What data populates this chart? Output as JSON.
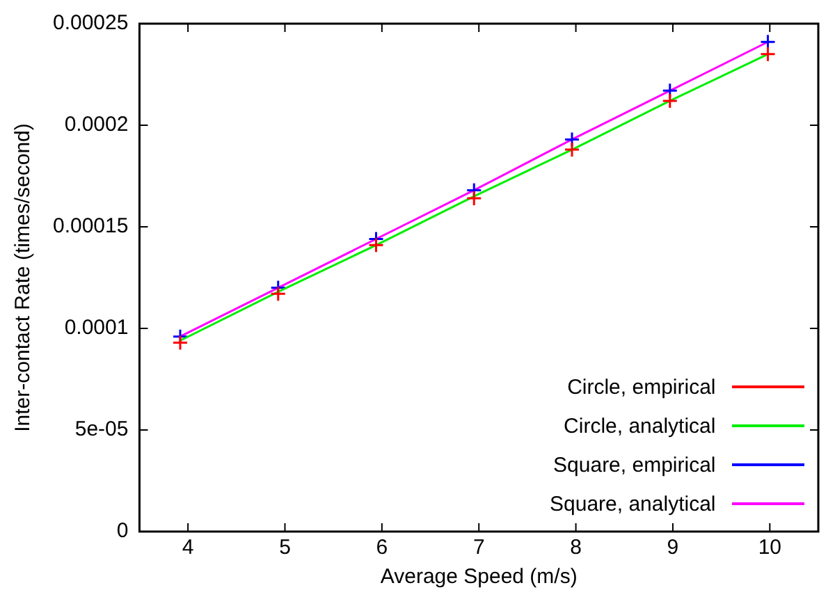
{
  "chart_data": {
    "type": "line",
    "xlabel": "Average Speed (m/s)",
    "ylabel": "Inter-contact Rate (times/second)",
    "x": [
      3.92,
      4.93,
      5.94,
      6.95,
      7.96,
      8.97,
      9.98
    ],
    "series": [
      {
        "name": "Circle, empirical",
        "type": "scatter",
        "marker": "cross",
        "color": "#ff0000",
        "values": [
          9.3e-05,
          0.000117,
          0.000141,
          0.000164,
          0.000188,
          0.000212,
          0.000235
        ]
      },
      {
        "name": "Circle, analytical",
        "marker": "none",
        "color": "#00ee00",
        "values": [
          9.4e-05,
          0.000118,
          0.000141,
          0.000165,
          0.000188,
          0.000212,
          0.000235
        ]
      },
      {
        "name": "Square, empirical",
        "type": "scatter",
        "marker": "cross",
        "color": "#0000ff",
        "values": [
          9.6e-05,
          0.00012,
          0.000144,
          0.000168,
          0.000193,
          0.000217,
          0.000241
        ]
      },
      {
        "name": "Square, analytical",
        "marker": "none",
        "color": "#ff00ff",
        "values": [
          9.6e-05,
          0.00012,
          0.000144,
          0.000168,
          0.000193,
          0.000217,
          0.000241
        ]
      }
    ],
    "xlim": [
      3.5,
      10.5
    ],
    "xticks": [
      4,
      5,
      6,
      7,
      8,
      9,
      10
    ],
    "ylim": [
      0,
      0.00025
    ],
    "yticks": [
      0,
      {
        "value": 5e-05,
        "label": "5e-05"
      },
      0.0001,
      0.00015,
      0.0002,
      0.00025
    ],
    "grid": false,
    "legend": "bottom right"
  }
}
